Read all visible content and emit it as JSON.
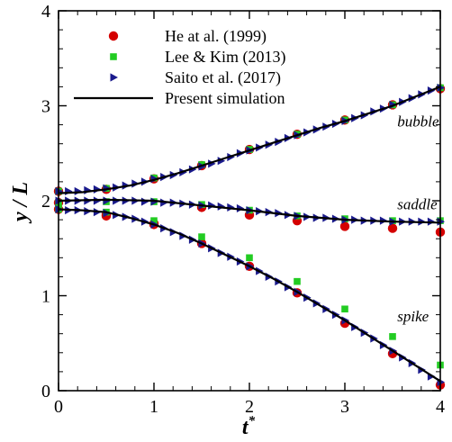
{
  "chart_data": {
    "type": "scatter",
    "xlabel": "t*",
    "ylabel": "y / L",
    "xlim": [
      0,
      4
    ],
    "ylim": [
      0,
      4
    ],
    "x_ticks": [
      "0",
      "1",
      "2",
      "3",
      "4"
    ],
    "y_ticks": [
      "0",
      "1",
      "2",
      "3",
      "4"
    ],
    "legend_position": "top-left",
    "grid": false,
    "series": [
      {
        "name": "He at al. (1999)",
        "marker": "circle",
        "color": "#d40000",
        "groups": [
          {
            "label": "bubble",
            "points": [
              [
                0,
                2.1
              ],
              [
                0.5,
                2.12
              ],
              [
                1,
                2.23
              ],
              [
                1.5,
                2.37
              ],
              [
                2,
                2.54
              ],
              [
                2.5,
                2.7
              ],
              [
                3,
                2.85
              ],
              [
                3.5,
                3.01
              ],
              [
                4,
                3.18
              ]
            ]
          },
          {
            "label": "saddle",
            "points": [
              [
                0,
                1.98
              ],
              [
                0.5,
                1.84
              ],
              [
                1,
                1.75
              ],
              [
                1.5,
                1.93
              ],
              [
                2,
                1.85
              ],
              [
                2.5,
                1.79
              ],
              [
                3,
                1.73
              ],
              [
                3.5,
                1.71
              ],
              [
                4,
                1.67
              ]
            ]
          },
          {
            "label": "spike",
            "points": [
              [
                0,
                1.91
              ],
              [
                0.5,
                1.85
              ],
              [
                1,
                1.76
              ],
              [
                1.5,
                1.55
              ],
              [
                2,
                1.31
              ],
              [
                2.5,
                1.03
              ],
              [
                3,
                0.71
              ],
              [
                3.5,
                0.39
              ],
              [
                4,
                0.06
              ]
            ]
          }
        ]
      },
      {
        "name": "Lee & Kim (2013)",
        "marker": "square",
        "color": "#22cc22",
        "groups": [
          {
            "label": "bubble",
            "points": [
              [
                0,
                2.1
              ],
              [
                0.5,
                2.13
              ],
              [
                1,
                2.24
              ],
              [
                1.5,
                2.38
              ],
              [
                2,
                2.54
              ],
              [
                2.5,
                2.7
              ],
              [
                3,
                2.85
              ],
              [
                3.5,
                3.01
              ],
              [
                4,
                3.19
              ]
            ]
          },
          {
            "label": "saddle",
            "points": [
              [
                0,
                1.98
              ],
              [
                0.5,
                1.99
              ],
              [
                1,
                1.99
              ],
              [
                1.5,
                1.96
              ],
              [
                2,
                1.9
              ],
              [
                2.5,
                1.84
              ],
              [
                3,
                1.81
              ],
              [
                3.5,
                1.79
              ],
              [
                4,
                1.79
              ]
            ]
          },
          {
            "label": "spike",
            "points": [
              [
                0,
                1.91
              ],
              [
                0.5,
                1.88
              ],
              [
                1,
                1.79
              ],
              [
                1.5,
                1.62
              ],
              [
                2,
                1.4
              ],
              [
                2.5,
                1.15
              ],
              [
                3,
                0.86
              ],
              [
                3.5,
                0.57
              ],
              [
                4,
                0.27
              ]
            ]
          }
        ]
      },
      {
        "name": "Saito et al. (2017)",
        "marker": "triangle-right",
        "color": "#1a1a8c",
        "groups": [
          {
            "label": "bubble",
            "points": [
              [
                0,
                2.1
              ],
              [
                0.1,
                2.1
              ],
              [
                0.2,
                2.1
              ],
              [
                0.3,
                2.11
              ],
              [
                0.4,
                2.12
              ],
              [
                0.5,
                2.13
              ],
              [
                0.6,
                2.14
              ],
              [
                0.7,
                2.16
              ],
              [
                0.8,
                2.18
              ],
              [
                0.9,
                2.2
              ],
              [
                1.0,
                2.23
              ],
              [
                1.1,
                2.25
              ],
              [
                1.2,
                2.27
              ],
              [
                1.3,
                2.3
              ],
              [
                1.4,
                2.33
              ],
              [
                1.5,
                2.36
              ],
              [
                1.6,
                2.39
              ],
              [
                1.7,
                2.42
              ],
              [
                1.8,
                2.46
              ],
              [
                1.9,
                2.5
              ],
              [
                2.0,
                2.53
              ],
              [
                2.1,
                2.56
              ],
              [
                2.2,
                2.59
              ],
              [
                2.3,
                2.62
              ],
              [
                2.4,
                2.66
              ],
              [
                2.5,
                2.69
              ],
              [
                2.6,
                2.72
              ],
              [
                2.7,
                2.75
              ],
              [
                2.8,
                2.78
              ],
              [
                2.9,
                2.81
              ],
              [
                3.0,
                2.84
              ],
              [
                3.1,
                2.87
              ],
              [
                3.2,
                2.9
              ],
              [
                3.3,
                2.94
              ],
              [
                3.4,
                2.97
              ],
              [
                3.5,
                3.01
              ],
              [
                3.6,
                3.04
              ],
              [
                3.7,
                3.08
              ],
              [
                3.8,
                3.12
              ],
              [
                3.9,
                3.16
              ],
              [
                4.0,
                3.19
              ]
            ]
          },
          {
            "label": "saddle",
            "points": [
              [
                0,
                2.0
              ],
              [
                0.1,
                2.0
              ],
              [
                0.2,
                2.0
              ],
              [
                0.3,
                2.0
              ],
              [
                0.4,
                2.0
              ],
              [
                0.5,
                2.0
              ],
              [
                0.6,
                2.0
              ],
              [
                0.7,
                2.0
              ],
              [
                0.8,
                2.0
              ],
              [
                0.9,
                1.99
              ],
              [
                1.0,
                1.99
              ],
              [
                1.1,
                1.98
              ],
              [
                1.2,
                1.98
              ],
              [
                1.3,
                1.97
              ],
              [
                1.4,
                1.96
              ],
              [
                1.5,
                1.95
              ],
              [
                1.6,
                1.95
              ],
              [
                1.7,
                1.94
              ],
              [
                1.8,
                1.93
              ],
              [
                1.9,
                1.92
              ],
              [
                2.0,
                1.9
              ],
              [
                2.1,
                1.89
              ],
              [
                2.2,
                1.88
              ],
              [
                2.3,
                1.87
              ],
              [
                2.4,
                1.85
              ],
              [
                2.5,
                1.84
              ],
              [
                2.6,
                1.83
              ],
              [
                2.7,
                1.82
              ],
              [
                2.8,
                1.82
              ],
              [
                2.9,
                1.81
              ],
              [
                3.0,
                1.8
              ],
              [
                3.1,
                1.8
              ],
              [
                3.2,
                1.79
              ],
              [
                3.3,
                1.79
              ],
              [
                3.4,
                1.79
              ],
              [
                3.5,
                1.78
              ],
              [
                3.6,
                1.78
              ],
              [
                3.7,
                1.78
              ],
              [
                3.8,
                1.78
              ],
              [
                3.9,
                1.78
              ],
              [
                4.0,
                1.78
              ]
            ]
          },
          {
            "label": "spike",
            "points": [
              [
                0,
                1.91
              ],
              [
                0.1,
                1.9
              ],
              [
                0.2,
                1.9
              ],
              [
                0.3,
                1.89
              ],
              [
                0.4,
                1.88
              ],
              [
                0.5,
                1.87
              ],
              [
                0.6,
                1.85
              ],
              [
                0.7,
                1.83
              ],
              [
                0.8,
                1.81
              ],
              [
                0.9,
                1.78
              ],
              [
                1.0,
                1.75
              ],
              [
                1.1,
                1.71
              ],
              [
                1.2,
                1.67
              ],
              [
                1.3,
                1.63
              ],
              [
                1.4,
                1.59
              ],
              [
                1.5,
                1.55
              ],
              [
                1.6,
                1.5
              ],
              [
                1.7,
                1.45
              ],
              [
                1.8,
                1.41
              ],
              [
                1.9,
                1.36
              ],
              [
                2.0,
                1.31
              ],
              [
                2.1,
                1.26
              ],
              [
                2.2,
                1.2
              ],
              [
                2.3,
                1.15
              ],
              [
                2.4,
                1.09
              ],
              [
                2.5,
                1.04
              ],
              [
                2.6,
                0.98
              ],
              [
                2.7,
                0.92
              ],
              [
                2.8,
                0.86
              ],
              [
                2.9,
                0.8
              ],
              [
                3.0,
                0.74
              ],
              [
                3.1,
                0.67
              ],
              [
                3.2,
                0.61
              ],
              [
                3.3,
                0.55
              ],
              [
                3.4,
                0.48
              ],
              [
                3.5,
                0.42
              ],
              [
                3.6,
                0.35
              ],
              [
                3.7,
                0.29
              ],
              [
                3.8,
                0.22
              ],
              [
                3.9,
                0.15
              ],
              [
                4.0,
                0.09
              ]
            ]
          }
        ]
      },
      {
        "name": "Present simulation",
        "marker": "line",
        "color": "#000000",
        "groups": [
          {
            "label": "bubble",
            "points": [
              [
                0,
                2.08
              ],
              [
                0.25,
                2.09
              ],
              [
                0.5,
                2.12
              ],
              [
                0.75,
                2.16
              ],
              [
                1.0,
                2.22
              ],
              [
                1.25,
                2.29
              ],
              [
                1.5,
                2.37
              ],
              [
                1.75,
                2.45
              ],
              [
                2.0,
                2.53
              ],
              [
                2.25,
                2.61
              ],
              [
                2.5,
                2.69
              ],
              [
                2.75,
                2.77
              ],
              [
                3.0,
                2.84
              ],
              [
                3.25,
                2.92
              ],
              [
                3.5,
                3.0
              ],
              [
                3.75,
                3.1
              ],
              [
                4.0,
                3.2
              ]
            ]
          },
          {
            "label": "saddle",
            "points": [
              [
                0,
                2.0
              ],
              [
                0.5,
                2.01
              ],
              [
                1.0,
                2.0
              ],
              [
                1.5,
                1.95
              ],
              [
                2.0,
                1.9
              ],
              [
                2.5,
                1.84
              ],
              [
                3.0,
                1.8
              ],
              [
                3.5,
                1.78
              ],
              [
                4.0,
                1.77
              ]
            ]
          },
          {
            "label": "spike",
            "points": [
              [
                0,
                1.91
              ],
              [
                0.25,
                1.9
              ],
              [
                0.5,
                1.88
              ],
              [
                0.75,
                1.82
              ],
              [
                1.0,
                1.75
              ],
              [
                1.25,
                1.66
              ],
              [
                1.5,
                1.55
              ],
              [
                1.75,
                1.43
              ],
              [
                2.0,
                1.31
              ],
              [
                2.25,
                1.18
              ],
              [
                2.5,
                1.04
              ],
              [
                2.75,
                0.89
              ],
              [
                3.0,
                0.74
              ],
              [
                3.25,
                0.58
              ],
              [
                3.5,
                0.42
              ],
              [
                3.75,
                0.26
              ],
              [
                4.0,
                0.1
              ]
            ]
          }
        ]
      }
    ],
    "annotations": [
      {
        "text": "bubble",
        "x": 3.55,
        "y": 2.78
      },
      {
        "text": "saddle",
        "x": 3.55,
        "y": 1.91
      },
      {
        "text": "spike",
        "x": 3.55,
        "y": 0.73
      }
    ]
  }
}
